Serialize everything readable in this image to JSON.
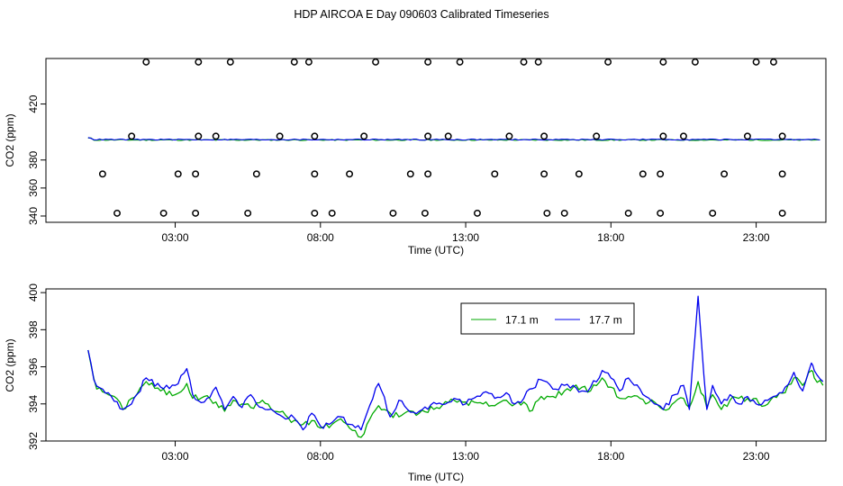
{
  "title": "HDP AIRCOA E  Day 090603  Calibrated Timeseries",
  "chart_data": [
    {
      "type": "scatter+line",
      "xlabel": "Time (UTC)",
      "ylabel": "CO2 (ppm)",
      "x_unit": "hours UTC",
      "xlim": [
        -1.45,
        25.4
      ],
      "ylim": [
        335.5,
        452.5
      ],
      "x_ticks": [
        {
          "v": 3,
          "label": "03:00"
        },
        {
          "v": 8,
          "label": "08:00"
        },
        {
          "v": 13,
          "label": "13:00"
        },
        {
          "v": 18,
          "label": "18:00"
        },
        {
          "v": 23,
          "label": "23:00"
        }
      ],
      "y_ticks": [
        340,
        360,
        380,
        420
      ],
      "calibration_points": {
        "levels": [
          342,
          370,
          397,
          450
        ],
        "x_at_342": [
          1.0,
          2.6,
          3.7,
          5.5,
          7.8,
          8.4,
          10.5,
          11.6,
          13.4,
          15.8,
          16.4,
          18.6,
          19.7,
          21.5,
          23.9
        ],
        "x_at_370": [
          0.5,
          3.1,
          3.7,
          5.8,
          7.8,
          9.0,
          11.1,
          11.7,
          14.0,
          15.7,
          16.9,
          19.1,
          19.7,
          21.9,
          23.9
        ],
        "x_at_397": [
          1.5,
          3.8,
          4.4,
          6.6,
          7.8,
          9.5,
          11.7,
          12.4,
          14.5,
          15.7,
          17.5,
          19.8,
          20.5,
          22.7,
          23.9
        ],
        "x_at_450": [
          2.0,
          3.8,
          4.9,
          7.1,
          7.6,
          9.9,
          11.7,
          12.8,
          15.0,
          15.5,
          17.9,
          19.8,
          20.9,
          23.0,
          23.6
        ]
      },
      "series": [
        {
          "name": "17.1 m",
          "color": "#00aa00",
          "smooth_level_ppm": 394.3
        },
        {
          "name": "17.7 m",
          "color": "#0000ee",
          "smooth_level_ppm": 394.6
        }
      ]
    },
    {
      "type": "line",
      "xlabel": "Time (UTC)",
      "ylabel": "CO2 (ppm)",
      "x_unit": "hours UTC",
      "xlim": [
        -1.45,
        25.4
      ],
      "ylim": [
        392,
        400.2
      ],
      "x_ticks": [
        {
          "v": 3,
          "label": "03:00"
        },
        {
          "v": 8,
          "label": "08:00"
        },
        {
          "v": 13,
          "label": "13:00"
        },
        {
          "v": 18,
          "label": "18:00"
        },
        {
          "v": 23,
          "label": "23:00"
        }
      ],
      "y_ticks": [
        392,
        394,
        396,
        398,
        400
      ],
      "legend": {
        "position": "top-right",
        "entries": [
          "17.1 m",
          "17.7 m"
        ]
      },
      "series": [
        {
          "name": "17.1 m",
          "color": "#00aa00",
          "anchors": [
            [
              0.0,
              396.9
            ],
            [
              0.3,
              394.8
            ],
            [
              0.6,
              394.6
            ],
            [
              0.9,
              394.4
            ],
            [
              1.2,
              393.7
            ],
            [
              1.5,
              394.3
            ],
            [
              2.0,
              395.2
            ],
            [
              2.5,
              394.7
            ],
            [
              3.0,
              394.5
            ],
            [
              3.4,
              395.1
            ],
            [
              3.6,
              394.3
            ],
            [
              4.0,
              394.4
            ],
            [
              4.4,
              394.1
            ],
            [
              4.7,
              393.6
            ],
            [
              5.0,
              394.2
            ],
            [
              5.3,
              394.0
            ],
            [
              5.6,
              393.8
            ],
            [
              6.0,
              394.2
            ],
            [
              6.4,
              393.6
            ],
            [
              6.7,
              393.6
            ],
            [
              7.0,
              393.0
            ],
            [
              7.4,
              392.9
            ],
            [
              7.7,
              393.1
            ],
            [
              8.0,
              392.7
            ],
            [
              8.4,
              392.9
            ],
            [
              8.7,
              393.2
            ],
            [
              9.0,
              392.7
            ],
            [
              9.4,
              392.2
            ],
            [
              9.6,
              392.9
            ],
            [
              10.0,
              393.9
            ],
            [
              10.4,
              393.5
            ],
            [
              10.7,
              393.3
            ],
            [
              11.0,
              393.6
            ],
            [
              11.4,
              393.5
            ],
            [
              12.0,
              393.8
            ],
            [
              12.6,
              394.2
            ],
            [
              13.0,
              394.1
            ],
            [
              13.6,
              394.0
            ],
            [
              14.0,
              393.9
            ],
            [
              14.4,
              394.2
            ],
            [
              14.7,
              394.0
            ],
            [
              15.0,
              394.1
            ],
            [
              15.2,
              393.6
            ],
            [
              15.6,
              394.4
            ],
            [
              16.0,
              394.4
            ],
            [
              16.4,
              394.7
            ],
            [
              16.7,
              394.9
            ],
            [
              17.0,
              394.9
            ],
            [
              17.3,
              394.7
            ],
            [
              17.7,
              395.4
            ],
            [
              18.0,
              394.9
            ],
            [
              18.3,
              394.3
            ],
            [
              18.6,
              394.4
            ],
            [
              19.0,
              394.3
            ],
            [
              19.2,
              394.0
            ],
            [
              19.5,
              394.1
            ],
            [
              19.8,
              393.7
            ],
            [
              20.2,
              394.1
            ],
            [
              20.5,
              394.3
            ],
            [
              20.7,
              393.8
            ],
            [
              21.0,
              395.2
            ],
            [
              21.3,
              393.8
            ],
            [
              21.5,
              394.5
            ],
            [
              21.8,
              393.7
            ],
            [
              22.1,
              394.2
            ],
            [
              22.4,
              394.3
            ],
            [
              22.7,
              394.3
            ],
            [
              23.0,
              394.3
            ],
            [
              23.3,
              393.9
            ],
            [
              23.6,
              394.4
            ],
            [
              24.0,
              394.6
            ],
            [
              24.3,
              395.4
            ],
            [
              24.6,
              395.0
            ],
            [
              24.9,
              395.8
            ],
            [
              25.0,
              395.4
            ],
            [
              25.3,
              395.0
            ]
          ]
        },
        {
          "name": "17.7 m",
          "color": "#0000ee",
          "anchors": [
            [
              0.0,
              396.9
            ],
            [
              0.2,
              395.3
            ],
            [
              0.5,
              394.8
            ],
            [
              0.8,
              394.4
            ],
            [
              1.2,
              393.7
            ],
            [
              1.5,
              394.0
            ],
            [
              2.0,
              395.4
            ],
            [
              2.5,
              394.9
            ],
            [
              3.0,
              395.0
            ],
            [
              3.4,
              395.9
            ],
            [
              3.6,
              394.5
            ],
            [
              4.0,
              394.1
            ],
            [
              4.4,
              394.9
            ],
            [
              4.7,
              393.7
            ],
            [
              5.0,
              394.4
            ],
            [
              5.3,
              393.8
            ],
            [
              5.6,
              394.5
            ],
            [
              6.0,
              393.8
            ],
            [
              6.4,
              393.6
            ],
            [
              6.7,
              393.3
            ],
            [
              7.0,
              393.4
            ],
            [
              7.4,
              392.6
            ],
            [
              7.7,
              393.5
            ],
            [
              8.0,
              392.8
            ],
            [
              8.4,
              393.0
            ],
            [
              8.7,
              393.3
            ],
            [
              9.0,
              392.9
            ],
            [
              9.4,
              392.6
            ],
            [
              9.6,
              393.5
            ],
            [
              10.0,
              395.1
            ],
            [
              10.4,
              393.3
            ],
            [
              10.7,
              394.2
            ],
            [
              11.0,
              393.7
            ],
            [
              11.4,
              393.6
            ],
            [
              12.0,
              394.0
            ],
            [
              12.6,
              394.3
            ],
            [
              13.0,
              394.0
            ],
            [
              13.6,
              394.6
            ],
            [
              14.0,
              394.3
            ],
            [
              14.4,
              394.6
            ],
            [
              14.7,
              394.0
            ],
            [
              15.0,
              394.3
            ],
            [
              15.2,
              394.8
            ],
            [
              15.6,
              395.3
            ],
            [
              16.0,
              394.8
            ],
            [
              16.4,
              395.0
            ],
            [
              16.7,
              395.0
            ],
            [
              17.0,
              394.7
            ],
            [
              17.3,
              394.9
            ],
            [
              17.7,
              395.8
            ],
            [
              18.0,
              395.4
            ],
            [
              18.3,
              394.7
            ],
            [
              18.6,
              395.4
            ],
            [
              19.0,
              394.8
            ],
            [
              19.2,
              394.4
            ],
            [
              19.5,
              394.0
            ],
            [
              19.8,
              393.7
            ],
            [
              20.2,
              394.5
            ],
            [
              20.5,
              395.0
            ],
            [
              20.7,
              393.7
            ],
            [
              21.0,
              399.8
            ],
            [
              21.3,
              393.7
            ],
            [
              21.5,
              395.0
            ],
            [
              21.8,
              394.0
            ],
            [
              22.1,
              394.5
            ],
            [
              22.4,
              394.0
            ],
            [
              22.7,
              394.4
            ],
            [
              23.0,
              394.0
            ],
            [
              23.3,
              394.2
            ],
            [
              23.6,
              394.4
            ],
            [
              24.0,
              394.9
            ],
            [
              24.3,
              395.7
            ],
            [
              24.6,
              394.7
            ],
            [
              24.9,
              396.2
            ],
            [
              25.0,
              395.8
            ],
            [
              25.3,
              395.2
            ]
          ]
        }
      ]
    }
  ]
}
